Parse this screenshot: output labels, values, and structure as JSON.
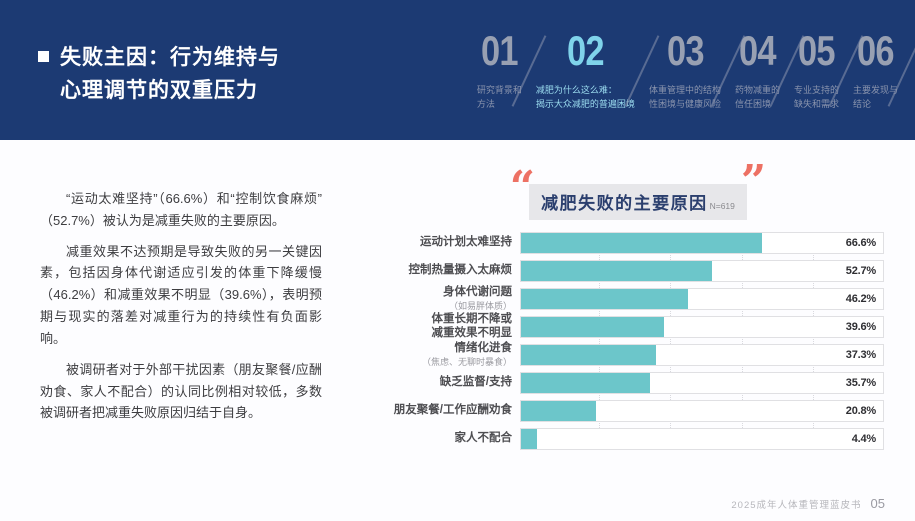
{
  "header": {
    "title": "失败主因：行为维持与\n心理调节的双重压力",
    "nav_items": [
      {
        "num": "01",
        "label": "研究背景和\n方法",
        "active": false
      },
      {
        "num": "02",
        "label": "减肥为什么这么难：\n揭示大众减肥的普遍困境",
        "active": true
      },
      {
        "num": "03",
        "label": "体重管理中的结构\n性困境与健康风险",
        "active": false
      },
      {
        "num": "04",
        "label": "药物减重的\n信任困境",
        "active": false
      },
      {
        "num": "05",
        "label": "专业支持的\n缺失和需求",
        "active": false
      },
      {
        "num": "06",
        "label": "主要发现与\n结论",
        "active": false
      }
    ]
  },
  "body": {
    "paragraphs": [
      {
        "text": "“运动太难坚持”（66.6%）和“控制饮食麻烦”（52.7%）被认为是减重失败的主要原因。"
      },
      {
        "text": "减重效果不达预期是导致失败的另一关键因素，包括因身体代谢适应引发的体重下降缓慢（46.2%）和减重效果不明显（39.6%），表明预期与现实的落差对减重行为的持续性有负面影响。"
      },
      {
        "text": "被调研者对于外部干扰因素（朋友聚餐/应酬劝食、家人不配合）的认同比例相对较低，多数被调研者把减重失败原因归结于自身。"
      }
    ]
  },
  "chart_data": {
    "type": "bar",
    "orientation": "horizontal",
    "title": "减肥失败的主要原因",
    "sample_label": "N=619",
    "unit": "%",
    "xlim": [
      0,
      100
    ],
    "gridlines_pct": [
      20,
      40,
      60,
      80
    ],
    "categories": [
      "运动计划太难坚持",
      "控制热量摄入太麻烦",
      "身体代谢问题（如易胖体质）",
      "体重长期不降或减重效果不明显",
      "情绪化进食（焦虑、无聊时暴食）",
      "缺乏监督/支持",
      "朋友聚餐/工作应酬劝食",
      "家人不配合"
    ],
    "values": [
      66.6,
      52.7,
      46.2,
      39.6,
      37.3,
      35.7,
      20.8,
      4.4
    ],
    "rows": [
      {
        "label": "运动计划太难坚持",
        "sub": "",
        "value": 66.6,
        "display": "66.6%"
      },
      {
        "label": "控制热量摄入太麻烦",
        "sub": "",
        "value": 52.7,
        "display": "52.7%"
      },
      {
        "label": "身体代谢问题",
        "sub": "（如易胖体质）",
        "value": 46.2,
        "display": "46.2%"
      },
      {
        "label": "体重长期不降或\n减重效果不明显",
        "sub": "",
        "value": 39.6,
        "display": "39.6%"
      },
      {
        "label": "情绪化进食",
        "sub": "（焦虑、无聊时暴食）",
        "value": 37.3,
        "display": "37.3%"
      },
      {
        "label": "缺乏监督/支持",
        "sub": "",
        "value": 35.7,
        "display": "35.7%"
      },
      {
        "label": "朋友聚餐/工作应酬劝食",
        "sub": "",
        "value": 20.8,
        "display": "20.8%"
      },
      {
        "label": "家人不配合",
        "sub": "",
        "value": 4.4,
        "display": "4.4%"
      }
    ]
  },
  "icons": {
    "quote_open": "“",
    "quote_close": "”"
  },
  "footer": {
    "text": "2025成年人体重管理蓝皮书",
    "page": "05"
  },
  "colors": {
    "navy": "#1c3a73",
    "bar_teal": "#6cc6ca",
    "quote_coral": "#ed7164",
    "nav_active_blue": "#7fd3ea",
    "nav_inactive_gray": "#98a0b2"
  }
}
